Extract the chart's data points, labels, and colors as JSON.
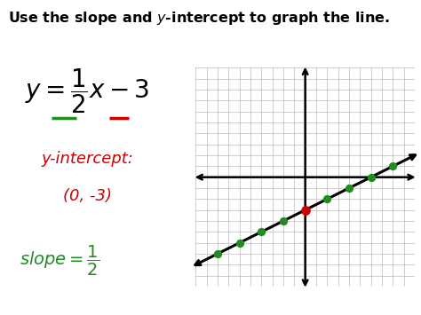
{
  "title": "Use the slope and $y$-intercept to graph the line.",
  "title_color": "#000000",
  "title_fontsize": 11.5,
  "orange_line_color": "#E87722",
  "bg_color": "#ffffff",
  "left_text": {
    "underline_slope_color": "#228B22",
    "underline_intercept_color": "#cc0000",
    "yintercept_color": "#cc0000",
    "slope_color": "#228B22",
    "eq_color": "#000000"
  },
  "grid": {
    "xlim": [
      -10,
      10
    ],
    "ylim": [
      -10,
      10
    ],
    "xticks": [
      -10,
      -9,
      -8,
      -7,
      -6,
      -5,
      -4,
      -3,
      -2,
      -1,
      0,
      1,
      2,
      3,
      4,
      5,
      6,
      7,
      8,
      9,
      10
    ],
    "yticks": [
      -10,
      -9,
      -8,
      -7,
      -6,
      -5,
      -4,
      -3,
      -2,
      -1,
      0,
      1,
      2,
      3,
      4,
      5,
      6,
      7,
      8,
      9,
      10
    ],
    "grid_color": "#bbbbbb",
    "axis_color": "#000000",
    "line_color": "#000000",
    "slope": 0.5,
    "intercept": -3,
    "green_points_x": [
      -8,
      -6,
      -4,
      -2,
      2,
      4,
      6,
      8
    ],
    "red_point_x": 0,
    "red_point_y": -3,
    "green_point_color": "#228B22",
    "red_point_color": "#cc0000",
    "point_size": 45
  }
}
